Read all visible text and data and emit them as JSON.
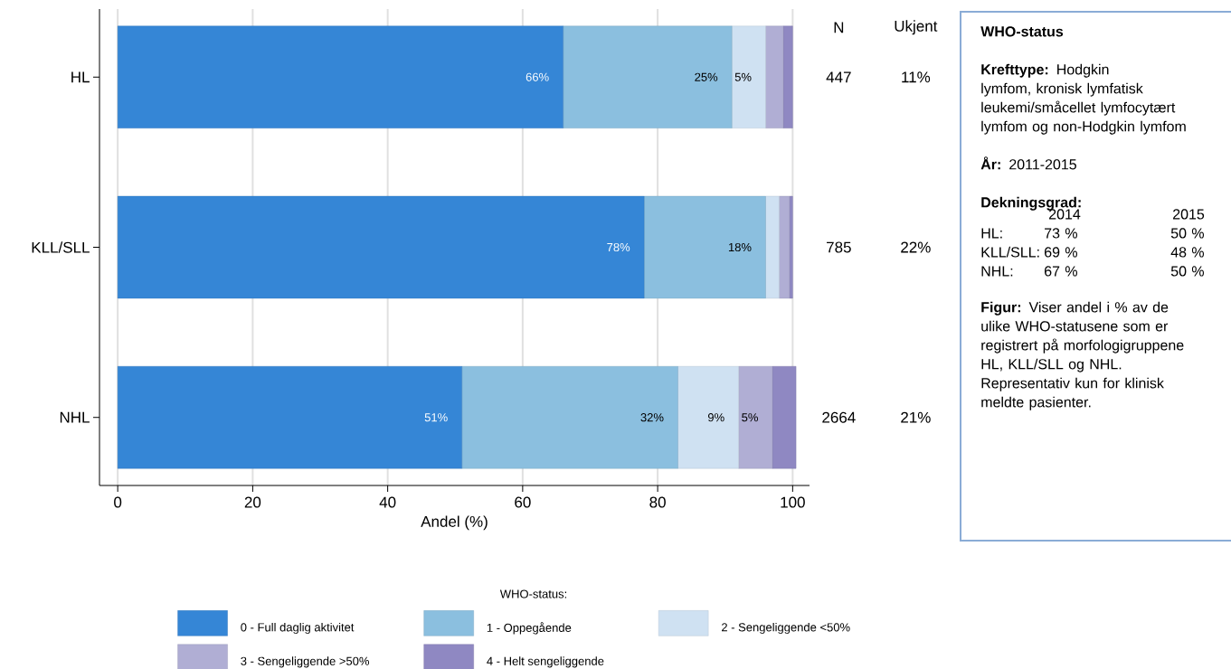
{
  "chart_data": {
    "type": "bar",
    "orientation": "horizontal",
    "stacked": true,
    "categories": [
      "HL",
      "KLL/SLL",
      "NHL"
    ],
    "xlabel": "Andel (%)",
    "xlim": [
      -2.7,
      102.5
    ],
    "xticks": [
      0,
      20,
      40,
      60,
      80,
      100
    ],
    "grid": "x",
    "legend": "bottom",
    "legend_title": "WHO-status:",
    "series": [
      {
        "name": "0 - Full daglig aktivitet",
        "color": "#3586d6",
        "values": [
          66,
          78,
          51
        ],
        "value_labels": [
          "66%",
          "78%",
          "51%"
        ]
      },
      {
        "name": "1 - Oppegående",
        "color": "#8bbfdf",
        "values": [
          25,
          18,
          32
        ],
        "value_labels": [
          "25%",
          "18%",
          "32%"
        ]
      },
      {
        "name": "2 - Sengeliggende <50%",
        "color": "#cfe1f2",
        "values": [
          5,
          2,
          9
        ],
        "value_labels": [
          "5%",
          null,
          "9%"
        ]
      },
      {
        "name": "3 - Sengeliggende >50%",
        "color": "#b0aed4",
        "values": [
          2.6,
          1.5,
          5
        ],
        "value_labels": [
          null,
          null,
          "5%"
        ]
      },
      {
        "name": "4 - Helt sengeliggende",
        "color": "#8f88c2",
        "values": [
          1.4,
          0.5,
          3.5
        ],
        "value_labels": [
          null,
          null,
          null
        ]
      }
    ],
    "annotations": [
      "N",
      "Ukjent",
      "447",
      "11%",
      "785",
      "22%",
      "2664",
      "21%",
      "WHO-status",
      "**Krefttype:** Hodgkin lymfom, kronisk lymfatisk leukemi/småcellet lymfocytært lymfom og non-Hodgkin lymfom",
      "**År:** 2011-2015",
      "Dekningsgrad:",
      "2014",
      "2015",
      "HL:",
      "73 %",
      "50 %",
      "KLL/SLL:",
      "69 %",
      "48 %",
      "NHL:",
      "67 %",
      "50 %",
      "**Figur:** Viser andel i % av de ulike WHO-statusene som er registrert på morfologigruppene HL, KLL/SLL og NHL. Representativ kun for klinisk meldte pasienter."
    ]
  }
}
